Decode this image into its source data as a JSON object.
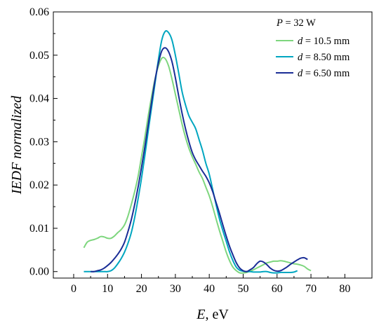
{
  "chart_data": {
    "type": "line",
    "ylabel": "IEDF normalized",
    "xlabel_italic": "E",
    "xlabel_rest": ", eV",
    "xlim": [
      -6,
      88
    ],
    "ylim": [
      -0.0015,
      0.06
    ],
    "xticks": [
      0,
      10,
      20,
      30,
      40,
      50,
      60,
      70,
      80
    ],
    "xtick_labels": [
      "0",
      "10",
      "20",
      "30",
      "40",
      "50",
      "60",
      "70",
      "80"
    ],
    "yticks": [
      0.0,
      0.01,
      0.02,
      0.03,
      0.04,
      0.05,
      0.06
    ],
    "ytick_labels": [
      "0.00",
      "0.01",
      "0.02",
      "0.03",
      "0.04",
      "0.05",
      "0.06"
    ],
    "legend_position": "top-right",
    "legend_title": {
      "italic": "P",
      "rest": " = 32 W"
    },
    "series": [
      {
        "name_italic": "d",
        "name_rest": " = 10.5 mm",
        "color": "#7ed67e",
        "x": [
          3,
          4,
          5,
          6,
          7,
          8,
          9,
          10,
          11,
          12,
          13,
          14,
          15,
          16,
          17,
          18,
          19,
          20,
          21,
          22,
          23,
          24,
          25,
          26,
          27,
          28,
          29,
          30,
          31,
          32,
          33,
          34,
          35,
          36,
          37,
          38,
          39,
          40,
          41,
          42,
          43,
          44,
          45,
          46,
          47,
          48,
          49,
          50,
          51,
          52,
          53,
          54,
          55,
          56,
          57,
          58,
          59,
          60,
          61,
          62,
          63,
          64,
          65,
          66,
          67,
          68,
          69,
          70
        ],
        "y": [
          0.0055,
          0.0068,
          0.0072,
          0.0074,
          0.0077,
          0.0081,
          0.008,
          0.0077,
          0.0077,
          0.0082,
          0.009,
          0.0097,
          0.0108,
          0.0128,
          0.0155,
          0.0185,
          0.022,
          0.0265,
          0.031,
          0.036,
          0.0405,
          0.0445,
          0.0475,
          0.0493,
          0.0492,
          0.0475,
          0.0445,
          0.041,
          0.0375,
          0.034,
          0.031,
          0.0285,
          0.0265,
          0.0248,
          0.023,
          0.0215,
          0.0195,
          0.0175,
          0.015,
          0.0122,
          0.0095,
          0.007,
          0.0045,
          0.0025,
          0.001,
          0.0002,
          -0.0003,
          -0.0003,
          -0.0002,
          0.0001,
          0.0004,
          0.0008,
          0.0012,
          0.0016,
          0.002,
          0.0022,
          0.0024,
          0.0024,
          0.0025,
          0.0024,
          0.0022,
          0.002,
          0.0018,
          0.0017,
          0.0015,
          0.0012,
          0.0006,
          0.0002
        ]
      },
      {
        "name_italic": "d",
        "name_rest": " = 8.50 mm",
        "color": "#00a6c0",
        "x": [
          3,
          4,
          5,
          6,
          7,
          8,
          9,
          10,
          11,
          12,
          13,
          14,
          15,
          16,
          17,
          18,
          19,
          20,
          21,
          22,
          23,
          24,
          25,
          26,
          27,
          28,
          29,
          30,
          31,
          32,
          33,
          34,
          35,
          36,
          37,
          38,
          39,
          40,
          41,
          42,
          43,
          44,
          45,
          46,
          47,
          48,
          49,
          50,
          51,
          52,
          53,
          54,
          55,
          56,
          57,
          58,
          59,
          60,
          61,
          62,
          63,
          64,
          65,
          66
        ],
        "y": [
          0.0,
          0.0,
          0.0,
          0.0,
          0.0,
          0.0,
          0.0,
          0.0,
          0.0002,
          0.0008,
          0.0018,
          0.003,
          0.0045,
          0.0065,
          0.009,
          0.0125,
          0.0168,
          0.0215,
          0.0268,
          0.0325,
          0.038,
          0.0435,
          0.049,
          0.0535,
          0.0555,
          0.0552,
          0.0535,
          0.05,
          0.0458,
          0.0415,
          0.0385,
          0.036,
          0.0345,
          0.033,
          0.0305,
          0.028,
          0.025,
          0.0225,
          0.019,
          0.0155,
          0.0122,
          0.0095,
          0.007,
          0.0045,
          0.0025,
          0.001,
          0.0003,
          0.0001,
          0.0,
          0.0,
          -0.0001,
          -0.0001,
          -0.0001,
          0.0,
          0.0,
          -0.0002,
          -0.0003,
          -0.0003,
          -0.0002,
          -0.0002,
          -0.0002,
          -0.0002,
          -0.0001,
          0.0002
        ]
      },
      {
        "name_italic": "d",
        "name_rest": " = 6.50 mm",
        "color": "#1a2d96",
        "x": [
          5,
          6,
          7,
          8,
          9,
          10,
          11,
          12,
          13,
          14,
          15,
          16,
          17,
          18,
          19,
          20,
          21,
          22,
          23,
          24,
          25,
          26,
          27,
          28,
          29,
          30,
          31,
          32,
          33,
          34,
          35,
          36,
          37,
          38,
          39,
          40,
          41,
          42,
          43,
          44,
          45,
          46,
          47,
          48,
          49,
          50,
          51,
          52,
          53,
          54,
          55,
          56,
          57,
          58,
          59,
          60,
          61,
          62,
          63,
          64,
          65,
          66,
          67,
          68,
          69
        ],
        "y": [
          0.0,
          0.0,
          0.0002,
          0.0004,
          0.0008,
          0.0014,
          0.0021,
          0.003,
          0.004,
          0.0052,
          0.0068,
          0.0092,
          0.012,
          0.0155,
          0.0195,
          0.024,
          0.0288,
          0.034,
          0.0392,
          0.0442,
          0.0482,
          0.051,
          0.0517,
          0.0508,
          0.0485,
          0.0448,
          0.0405,
          0.0365,
          0.033,
          0.03,
          0.0275,
          0.0258,
          0.0245,
          0.0232,
          0.022,
          0.0205,
          0.0185,
          0.016,
          0.0135,
          0.0108,
          0.0082,
          0.0058,
          0.0038,
          0.002,
          0.0008,
          0.0002,
          0.0,
          0.0004,
          0.0009,
          0.0018,
          0.0024,
          0.0022,
          0.0016,
          0.0008,
          0.0003,
          0.0001,
          0.0002,
          0.0006,
          0.0011,
          0.0017,
          0.0022,
          0.0027,
          0.0031,
          0.0032,
          0.0028
        ]
      }
    ]
  }
}
